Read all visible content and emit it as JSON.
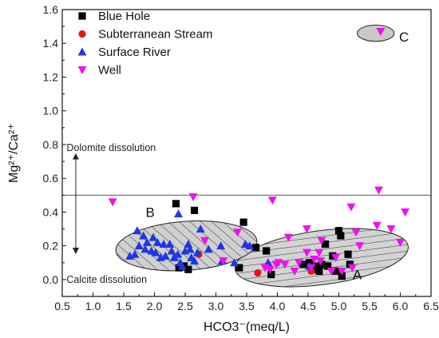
{
  "chart_data": {
    "type": "scatter",
    "title": "",
    "xlabel": "HCO3⁻(meq/L)",
    "ylabel": "Mg²⁺/Ca²⁺",
    "xlim": [
      0.5,
      6.5
    ],
    "ylim": [
      -0.1,
      1.6
    ],
    "x_ticks": [
      "0.5",
      "1.0",
      "1.5",
      "2.0",
      "2.5",
      "3.0",
      "3.5",
      "4.0",
      "4.5",
      "5.0",
      "5.5",
      "6.0",
      "6.5"
    ],
    "y_ticks": [
      "0.0",
      "0.2",
      "0.4",
      "0.6",
      "0.8",
      "1.0",
      "1.2",
      "1.4",
      "1.6"
    ],
    "legend_position": "top-left",
    "series": [
      {
        "name": "Blue Hole",
        "marker": "square",
        "color": "#000000",
        "points": [
          [
            2.35,
            0.45
          ],
          [
            2.65,
            0.41
          ],
          [
            2.4,
            0.07
          ],
          [
            2.48,
            0.08
          ],
          [
            2.55,
            0.06
          ],
          [
            3.45,
            0.34
          ],
          [
            3.38,
            0.07
          ],
          [
            3.65,
            0.19
          ],
          [
            3.82,
            0.17
          ],
          [
            3.9,
            0.03
          ],
          [
            4.42,
            0.09
          ],
          [
            4.52,
            0.1
          ],
          [
            4.62,
            0.08
          ],
          [
            4.72,
            0.09
          ],
          [
            4.78,
            0.21
          ],
          [
            4.82,
            0.08
          ],
          [
            4.95,
            0.05
          ],
          [
            4.9,
            0.14
          ],
          [
            5.0,
            0.29
          ],
          [
            5.03,
            0.26
          ],
          [
            5.05,
            0.02
          ],
          [
            5.15,
            0.15
          ],
          [
            5.18,
            0.09
          ],
          [
            4.68,
            0.05
          ],
          [
            4.58,
            0.06
          ]
        ]
      },
      {
        "name": "Subterranean Stream",
        "marker": "circle",
        "color": "#e8141b",
        "points": [
          [
            2.72,
            0.15
          ],
          [
            3.68,
            0.04
          ],
          [
            4.55,
            0.05
          ]
        ]
      },
      {
        "name": "Surface River",
        "marker": "triangle-up",
        "color": "#1f36e6",
        "points": [
          [
            2.39,
            0.39
          ],
          [
            1.6,
            0.14
          ],
          [
            1.68,
            0.15
          ],
          [
            1.72,
            0.29
          ],
          [
            1.82,
            0.26
          ],
          [
            1.75,
            0.2
          ],
          [
            1.88,
            0.22
          ],
          [
            1.95,
            0.17
          ],
          [
            1.98,
            0.25
          ],
          [
            2.02,
            0.16
          ],
          [
            2.05,
            0.22
          ],
          [
            2.1,
            0.13
          ],
          [
            2.18,
            0.14
          ],
          [
            2.25,
            0.21
          ],
          [
            2.28,
            0.17
          ],
          [
            2.32,
            0.13
          ],
          [
            2.38,
            0.15
          ],
          [
            2.42,
            0.1
          ],
          [
            2.45,
            0.08
          ],
          [
            2.5,
            0.17
          ],
          [
            2.55,
            0.21
          ],
          [
            2.58,
            0.18
          ],
          [
            2.6,
            0.13
          ],
          [
            2.65,
            0.11
          ],
          [
            2.7,
            0.16
          ],
          [
            2.75,
            0.3
          ],
          [
            2.88,
            0.18
          ],
          [
            3.1,
            0.11
          ],
          [
            3.08,
            0.2
          ],
          [
            3.3,
            0.1
          ],
          [
            3.48,
            0.21
          ],
          [
            3.55,
            0.2
          ],
          [
            3.85,
            0.1
          ],
          [
            4.52,
            0.08
          ],
          [
            2.15,
            0.21
          ],
          [
            1.85,
            0.18
          ]
        ]
      },
      {
        "name": "Well",
        "marker": "triangle-down",
        "color": "#ee10ee",
        "points": [
          [
            1.32,
            0.46
          ],
          [
            2.63,
            0.49
          ],
          [
            2.82,
            0.23
          ],
          [
            3.12,
            0.11
          ],
          [
            3.35,
            0.28
          ],
          [
            3.8,
            0.07
          ],
          [
            3.92,
            0.47
          ],
          [
            3.88,
            0.06
          ],
          [
            3.98,
            0.09
          ],
          [
            4.02,
            0.1
          ],
          [
            4.12,
            0.09
          ],
          [
            4.18,
            0.25
          ],
          [
            4.28,
            0.05
          ],
          [
            4.35,
            0.1
          ],
          [
            4.48,
            0.3
          ],
          [
            4.55,
            0.07
          ],
          [
            4.6,
            0.12
          ],
          [
            4.68,
            0.16
          ],
          [
            4.72,
            0.23
          ],
          [
            4.88,
            0.05
          ],
          [
            4.95,
            0.13
          ],
          [
            5.05,
            0.05
          ],
          [
            5.2,
            0.43
          ],
          [
            5.22,
            0.07
          ],
          [
            5.28,
            0.28
          ],
          [
            5.34,
            0.2
          ],
          [
            5.65,
            0.53
          ],
          [
            5.62,
            0.32
          ],
          [
            5.85,
            0.3
          ],
          [
            6.0,
            0.22
          ],
          [
            6.08,
            0.4
          ],
          [
            5.68,
            1.47
          ],
          [
            4.48,
            0.16
          ],
          [
            4.7,
            0.11
          ]
        ]
      }
    ],
    "reference_line": {
      "y": 0.5
    },
    "regions": [
      {
        "label": "A",
        "cx": 4.72,
        "cy": 0.13,
        "rx": 1.42,
        "ry": 0.16,
        "rotation_deg": -7.5,
        "hatch": "horizontal",
        "label_pos": [
          5.3,
          0.03
        ]
      },
      {
        "label": "B",
        "cx": 2.52,
        "cy": 0.2,
        "rx": 1.15,
        "ry": 0.145,
        "rotation_deg": -4.0,
        "hatch": "diagonal",
        "label_pos": [
          1.93,
          0.4
        ]
      },
      {
        "label": "C",
        "cx": 5.6,
        "cy": 1.46,
        "rx": 0.3,
        "ry": 0.048,
        "rotation_deg": 0,
        "hatch": "none",
        "label_pos": [
          6.06,
          1.44
        ]
      }
    ],
    "annotations": [
      {
        "text": "Dolomite dissolution",
        "x": 0.57,
        "y": 0.78
      },
      {
        "text": "Calcite dissolution",
        "x": 0.57,
        "y": 0.0
      }
    ],
    "arrow": {
      "x": 0.72,
      "y_from": 0.73,
      "y_to": 0.48,
      "y_to_bottom": 0.17
    }
  }
}
